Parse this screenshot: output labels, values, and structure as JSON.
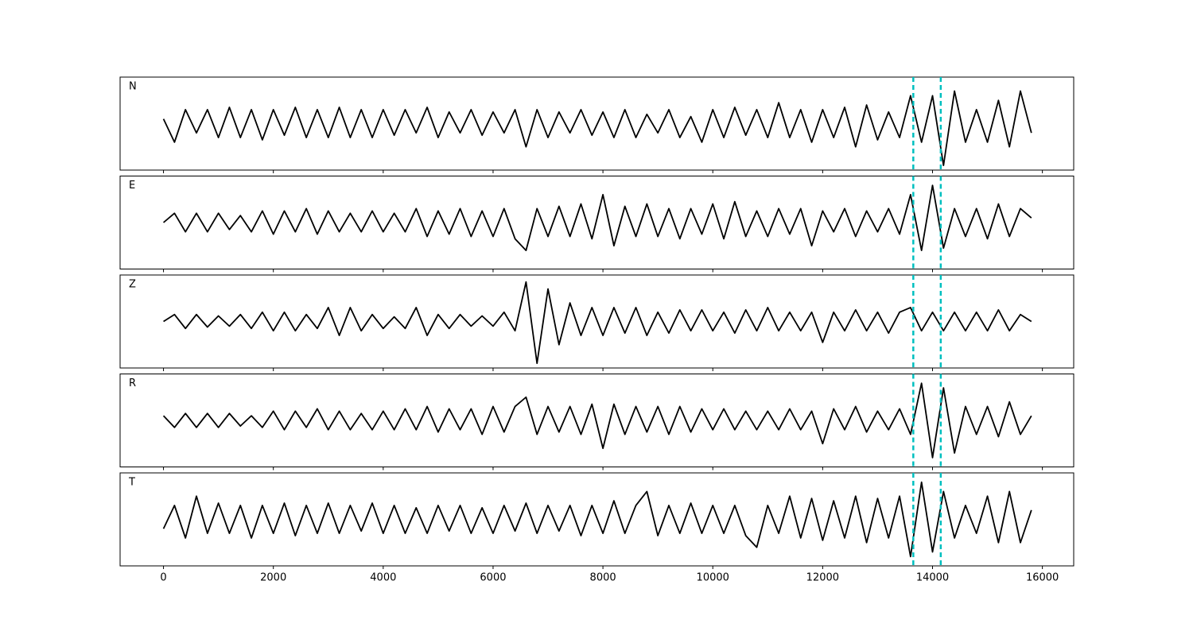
{
  "chart_data": {
    "type": "line",
    "x": [
      0,
      200,
      400,
      600,
      800,
      1000,
      1200,
      1400,
      1600,
      1800,
      2000,
      2200,
      2400,
      2600,
      2800,
      3000,
      3200,
      3400,
      3600,
      3800,
      4000,
      4200,
      4400,
      4600,
      4800,
      5000,
      5200,
      5400,
      5600,
      5800,
      6000,
      6200,
      6400,
      6600,
      6800,
      7000,
      7200,
      7400,
      7600,
      7800,
      8000,
      8200,
      8400,
      8600,
      8800,
      9000,
      9200,
      9400,
      9600,
      9800,
      10000,
      10200,
      10400,
      10600,
      10800,
      11000,
      11200,
      11400,
      11600,
      11800,
      12000,
      12200,
      12400,
      12600,
      12800,
      13000,
      13200,
      13400,
      13600,
      13800,
      14000,
      14200,
      14400,
      14600,
      14800,
      15000,
      15200,
      15400,
      15600,
      15800
    ],
    "series": [
      {
        "name": "N",
        "color": "#000000",
        "values": [
          0.1,
          -0.4,
          0.3,
          -0.2,
          0.3,
          -0.3,
          0.35,
          -0.3,
          0.3,
          -0.35,
          0.3,
          -0.25,
          0.35,
          -0.3,
          0.3,
          -0.3,
          0.35,
          -0.3,
          0.3,
          -0.3,
          0.3,
          -0.25,
          0.3,
          -0.2,
          0.35,
          -0.3,
          0.25,
          -0.2,
          0.3,
          -0.25,
          0.25,
          -0.2,
          0.3,
          -0.5,
          0.3,
          -0.3,
          0.25,
          -0.2,
          0.3,
          -0.25,
          0.25,
          -0.3,
          0.3,
          -0.3,
          0.2,
          -0.2,
          0.3,
          -0.3,
          0.15,
          -0.4,
          0.3,
          -0.3,
          0.35,
          -0.25,
          0.3,
          -0.3,
          0.45,
          -0.3,
          0.3,
          -0.4,
          0.3,
          -0.3,
          0.35,
          -0.5,
          0.4,
          -0.35,
          0.25,
          -0.3,
          0.6,
          -0.4,
          0.6,
          -0.9,
          0.7,
          -0.4,
          0.3,
          -0.4,
          0.5,
          -0.5,
          0.7,
          -0.2
        ]
      },
      {
        "name": "E",
        "color": "#000000",
        "values": [
          0.0,
          0.2,
          -0.2,
          0.2,
          -0.2,
          0.2,
          -0.15,
          0.15,
          -0.2,
          0.25,
          -0.25,
          0.25,
          -0.2,
          0.3,
          -0.25,
          0.25,
          -0.2,
          0.2,
          -0.2,
          0.25,
          -0.2,
          0.2,
          -0.2,
          0.3,
          -0.3,
          0.25,
          -0.25,
          0.3,
          -0.3,
          0.25,
          -0.3,
          0.3,
          -0.35,
          -0.6,
          0.3,
          -0.3,
          0.35,
          -0.3,
          0.4,
          -0.35,
          0.6,
          -0.5,
          0.35,
          -0.3,
          0.4,
          -0.3,
          0.3,
          -0.35,
          0.3,
          -0.25,
          0.4,
          -0.35,
          0.45,
          -0.3,
          0.25,
          -0.3,
          0.3,
          -0.25,
          0.3,
          -0.5,
          0.25,
          -0.2,
          0.3,
          -0.3,
          0.25,
          -0.2,
          0.3,
          -0.25,
          0.6,
          -0.6,
          0.8,
          -0.55,
          0.3,
          -0.3,
          0.3,
          -0.35,
          0.4,
          -0.3,
          0.3,
          0.1
        ]
      },
      {
        "name": "Z",
        "color": "#000000",
        "values": [
          0.0,
          0.15,
          -0.15,
          0.15,
          -0.12,
          0.12,
          -0.1,
          0.15,
          -0.15,
          0.2,
          -0.2,
          0.2,
          -0.2,
          0.15,
          -0.15,
          0.3,
          -0.3,
          0.3,
          -0.2,
          0.15,
          -0.15,
          0.1,
          -0.15,
          0.3,
          -0.3,
          0.15,
          -0.15,
          0.15,
          -0.1,
          0.12,
          -0.1,
          0.2,
          -0.2,
          0.85,
          -0.9,
          0.7,
          -0.5,
          0.4,
          -0.3,
          0.3,
          -0.3,
          0.3,
          -0.25,
          0.3,
          -0.3,
          0.2,
          -0.25,
          0.25,
          -0.2,
          0.25,
          -0.2,
          0.2,
          -0.25,
          0.25,
          -0.2,
          0.3,
          -0.2,
          0.2,
          -0.2,
          0.2,
          -0.45,
          0.2,
          -0.2,
          0.25,
          -0.2,
          0.2,
          -0.25,
          0.2,
          0.3,
          -0.2,
          0.2,
          -0.2,
          0.2,
          -0.2,
          0.2,
          -0.2,
          0.25,
          -0.2,
          0.15,
          0.0
        ]
      },
      {
        "name": "R",
        "color": "#000000",
        "values": [
          0.1,
          -0.15,
          0.15,
          -0.15,
          0.15,
          -0.15,
          0.15,
          -0.12,
          0.1,
          -0.15,
          0.2,
          -0.2,
          0.2,
          -0.15,
          0.25,
          -0.2,
          0.2,
          -0.2,
          0.15,
          -0.2,
          0.2,
          -0.2,
          0.25,
          -0.2,
          0.3,
          -0.25,
          0.25,
          -0.2,
          0.25,
          -0.3,
          0.3,
          -0.25,
          0.3,
          0.5,
          -0.3,
          0.3,
          -0.25,
          0.3,
          -0.3,
          0.35,
          -0.6,
          0.35,
          -0.3,
          0.3,
          -0.25,
          0.3,
          -0.3,
          0.3,
          -0.25,
          0.25,
          -0.2,
          0.25,
          -0.2,
          0.2,
          -0.2,
          0.2,
          -0.2,
          0.25,
          -0.2,
          0.2,
          -0.5,
          0.25,
          -0.2,
          0.3,
          -0.25,
          0.2,
          -0.2,
          0.25,
          -0.3,
          0.8,
          -0.8,
          0.7,
          -0.7,
          0.3,
          -0.3,
          0.3,
          -0.35,
          0.4,
          -0.3,
          0.1
        ]
      },
      {
        "name": "T",
        "color": "#000000",
        "values": [
          -0.2,
          0.3,
          -0.4,
          0.5,
          -0.3,
          0.35,
          -0.3,
          0.3,
          -0.4,
          0.3,
          -0.3,
          0.35,
          -0.35,
          0.3,
          -0.3,
          0.35,
          -0.3,
          0.3,
          -0.25,
          0.35,
          -0.3,
          0.3,
          -0.3,
          0.25,
          -0.3,
          0.3,
          -0.25,
          0.3,
          -0.3,
          0.25,
          -0.3,
          0.3,
          -0.25,
          0.35,
          -0.3,
          0.3,
          -0.25,
          0.3,
          -0.35,
          0.3,
          -0.3,
          0.4,
          -0.3,
          0.3,
          0.6,
          -0.35,
          0.3,
          -0.3,
          0.35,
          -0.3,
          0.3,
          -0.3,
          0.3,
          -0.35,
          -0.6,
          0.3,
          -0.3,
          0.5,
          -0.4,
          0.45,
          -0.45,
          0.4,
          -0.4,
          0.5,
          -0.5,
          0.45,
          -0.4,
          0.5,
          -0.8,
          0.8,
          -0.7,
          0.6,
          -0.4,
          0.3,
          -0.3,
          0.5,
          -0.5,
          0.6,
          -0.5,
          0.2
        ]
      }
    ],
    "xlim": [
      -790,
      16570
    ],
    "ylim": [
      -1,
      1
    ],
    "xticks": [
      0,
      2000,
      4000,
      6000,
      8000,
      10000,
      12000,
      14000,
      16000
    ],
    "vlines": [
      13650,
      14150
    ],
    "vline_color": "#00bfbf"
  }
}
